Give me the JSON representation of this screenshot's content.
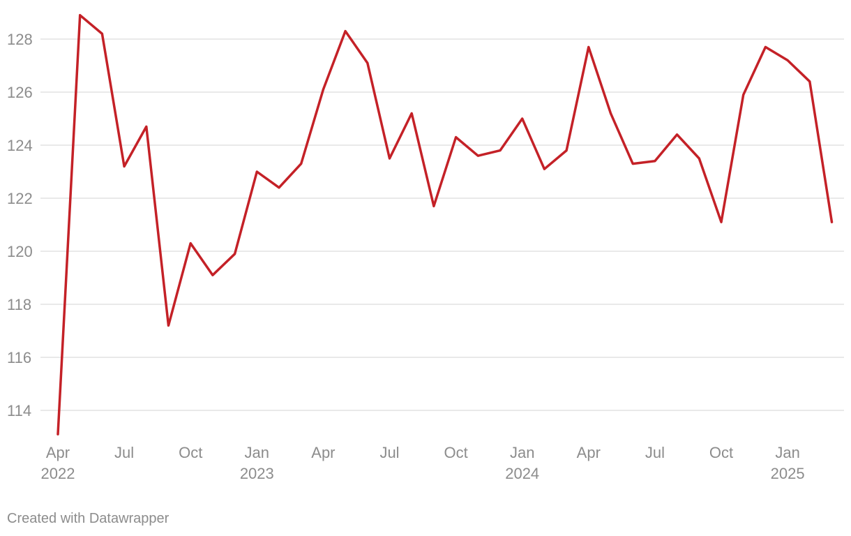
{
  "footer": "Created with Datawrapper",
  "chart_data": {
    "type": "line",
    "title": "",
    "xlabel": "",
    "ylabel": "",
    "ylim": [
      113,
      129
    ],
    "y_ticks": [
      114,
      116,
      118,
      120,
      122,
      124,
      126,
      128
    ],
    "grid": true,
    "legend": "none",
    "colors": {
      "line": "#c42127",
      "grid": "#dcdcdc",
      "tick": "#8c8c8c"
    },
    "x_ticks": [
      {
        "date": "2022-04",
        "month": "Apr",
        "year": "2022"
      },
      {
        "date": "2022-07",
        "month": "Jul",
        "year": ""
      },
      {
        "date": "2022-10",
        "month": "Oct",
        "year": ""
      },
      {
        "date": "2023-01",
        "month": "Jan",
        "year": "2023"
      },
      {
        "date": "2023-04",
        "month": "Apr",
        "year": ""
      },
      {
        "date": "2023-07",
        "month": "Jul",
        "year": ""
      },
      {
        "date": "2023-10",
        "month": "Oct",
        "year": ""
      },
      {
        "date": "2024-01",
        "month": "Jan",
        "year": "2024"
      },
      {
        "date": "2024-04",
        "month": "Apr",
        "year": ""
      },
      {
        "date": "2024-07",
        "month": "Jul",
        "year": ""
      },
      {
        "date": "2024-10",
        "month": "Oct",
        "year": ""
      },
      {
        "date": "2025-01",
        "month": "Jan",
        "year": "2025"
      }
    ],
    "series": [
      {
        "x": [
          "2022-04",
          "2022-05",
          "2022-06",
          "2022-07",
          "2022-08",
          "2022-09",
          "2022-10",
          "2022-11",
          "2022-12",
          "2023-01",
          "2023-02",
          "2023-03",
          "2023-04",
          "2023-05",
          "2023-06",
          "2023-07",
          "2023-08",
          "2023-09",
          "2023-10",
          "2023-11",
          "2023-12",
          "2024-01",
          "2024-02",
          "2024-03",
          "2024-04",
          "2024-05",
          "2024-06",
          "2024-07",
          "2024-08",
          "2024-09",
          "2024-10",
          "2024-11",
          "2024-12",
          "2025-01",
          "2025-02",
          "2025-03"
        ],
        "values": [
          113.1,
          128.9,
          128.2,
          123.2,
          124.7,
          117.2,
          120.3,
          119.1,
          119.9,
          123.0,
          122.4,
          123.3,
          126.1,
          128.3,
          127.1,
          123.5,
          125.2,
          121.7,
          124.3,
          123.6,
          123.8,
          125.0,
          123.1,
          123.8,
          127.7,
          125.2,
          123.3,
          123.4,
          124.4,
          123.5,
          121.1,
          125.9,
          127.7,
          127.2,
          126.4,
          121.1
        ]
      }
    ]
  }
}
